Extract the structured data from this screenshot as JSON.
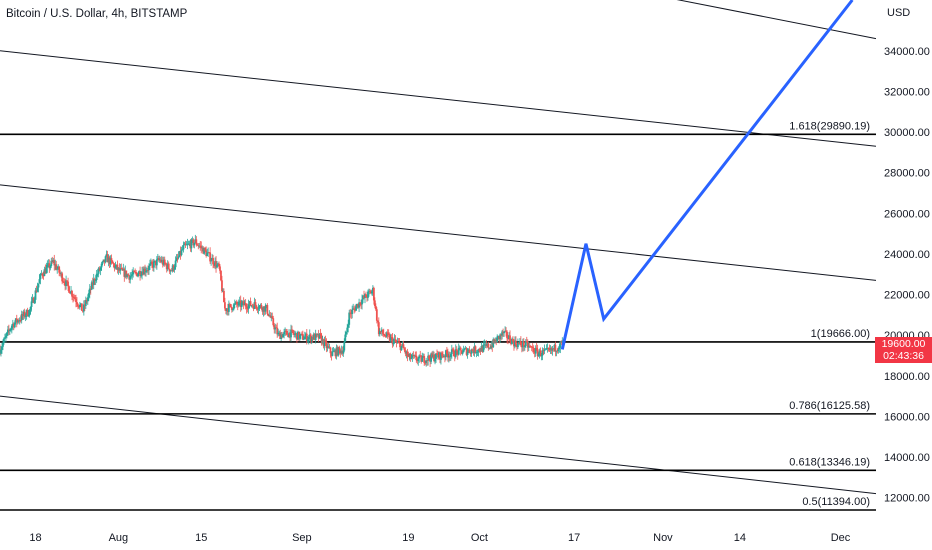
{
  "header": {
    "title": "Bitcoin / U.S. Dollar, 4h, BITSTAMP"
  },
  "price_tag": {
    "price": "19600.00",
    "countdown": "02:43:36",
    "color": "#f23645"
  },
  "colors": {
    "up": "#26a69a",
    "down": "#ef5350",
    "projection": "#2962ff",
    "channel": "#131722"
  },
  "chart_data": {
    "type": "candlestick",
    "title": "Bitcoin / U.S. Dollar, 4h, BITSTAMP",
    "ylabel": "USD",
    "ylim": [
      11000,
      36500
    ],
    "y_ticks": [
      "12000.00",
      "14000.00",
      "16000.00",
      "18000.00",
      "20000.00",
      "22000.00",
      "24000.00",
      "26000.00",
      "28000.00",
      "30000.00",
      "32000.00",
      "34000.00"
    ],
    "x_ticks": [
      "18",
      "Aug",
      "15",
      "Sep",
      "19",
      "Oct",
      "17",
      "Nov",
      "14",
      "Dec"
    ],
    "x_ticks_dates": [
      "2022-07-18",
      "2022-08-01",
      "2022-08-15",
      "2022-09-01",
      "2022-09-19",
      "2022-10-01",
      "2022-10-17",
      "2022-11-01",
      "2022-11-14",
      "2022-12-01"
    ],
    "x_range_dates": [
      "2022-07-12",
      "2022-12-07"
    ],
    "fib_levels": [
      {
        "label": "1.618(29890.19)",
        "price": 29890.19
      },
      {
        "label": "1(19666.00)",
        "price": 19666.0
      },
      {
        "label": "0.786(16125.58)",
        "price": 16125.58
      },
      {
        "label": "0.618(13346.19)",
        "price": 13346.19
      },
      {
        "label": "0.5(11394.00)",
        "price": 11394.0
      }
    ],
    "price_path": [
      [
        "2022-07-12",
        19300
      ],
      [
        "2022-07-14",
        20500
      ],
      [
        "2022-07-17",
        21200
      ],
      [
        "2022-07-19",
        23000
      ],
      [
        "2022-07-21",
        23600
      ],
      [
        "2022-07-23",
        22600
      ],
      [
        "2022-07-26",
        21200
      ],
      [
        "2022-07-28",
        22800
      ],
      [
        "2022-07-30",
        23800
      ],
      [
        "2022-08-01",
        23200
      ],
      [
        "2022-08-03",
        22900
      ],
      [
        "2022-08-06",
        23300
      ],
      [
        "2022-08-08",
        23700
      ],
      [
        "2022-08-10",
        23200
      ],
      [
        "2022-08-12",
        24300
      ],
      [
        "2022-08-14",
        24600
      ],
      [
        "2022-08-16",
        24000
      ],
      [
        "2022-08-18",
        23300
      ],
      [
        "2022-08-19",
        21300
      ],
      [
        "2022-08-21",
        21500
      ],
      [
        "2022-08-24",
        21500
      ],
      [
        "2022-08-26",
        21300
      ],
      [
        "2022-08-28",
        20000
      ],
      [
        "2022-08-30",
        20100
      ],
      [
        "2022-09-01",
        19900
      ],
      [
        "2022-09-04",
        19900
      ],
      [
        "2022-09-06",
        19100
      ],
      [
        "2022-09-08",
        19300
      ],
      [
        "2022-09-09",
        21000
      ],
      [
        "2022-09-11",
        21700
      ],
      [
        "2022-09-13",
        22200
      ],
      [
        "2022-09-14",
        20200
      ],
      [
        "2022-09-16",
        19800
      ],
      [
        "2022-09-18",
        19400
      ],
      [
        "2022-09-19",
        18900
      ],
      [
        "2022-09-21",
        18800
      ],
      [
        "2022-09-23",
        18900
      ],
      [
        "2022-09-26",
        19100
      ],
      [
        "2022-09-28",
        19200
      ],
      [
        "2022-10-01",
        19300
      ],
      [
        "2022-10-03",
        19500
      ],
      [
        "2022-10-05",
        20100
      ],
      [
        "2022-10-07",
        19600
      ],
      [
        "2022-10-09",
        19500
      ],
      [
        "2022-10-11",
        19100
      ],
      [
        "2022-10-13",
        19200
      ],
      [
        "2022-10-14",
        19400
      ],
      [
        "2022-10-15",
        19600
      ]
    ],
    "projection_path": [
      [
        "2022-10-15",
        19300
      ],
      [
        "2022-10-19",
        24500
      ],
      [
        "2022-10-22",
        20800
      ],
      [
        "2022-12-03",
        36500
      ]
    ],
    "channel_lines": [
      {
        "from": [
          "2022-07-12",
          34000
        ],
        "to": [
          "2022-12-07",
          29300
        ]
      },
      {
        "from": [
          "2022-07-12",
          27400
        ],
        "to": [
          "2022-12-07",
          22700
        ]
      },
      {
        "from": [
          "2022-07-12",
          17000
        ],
        "to": [
          "2022-12-07",
          12200
        ]
      },
      {
        "from": [
          "2022-10-26",
          37000
        ],
        "to": [
          "2022-12-07",
          34600
        ]
      }
    ]
  }
}
